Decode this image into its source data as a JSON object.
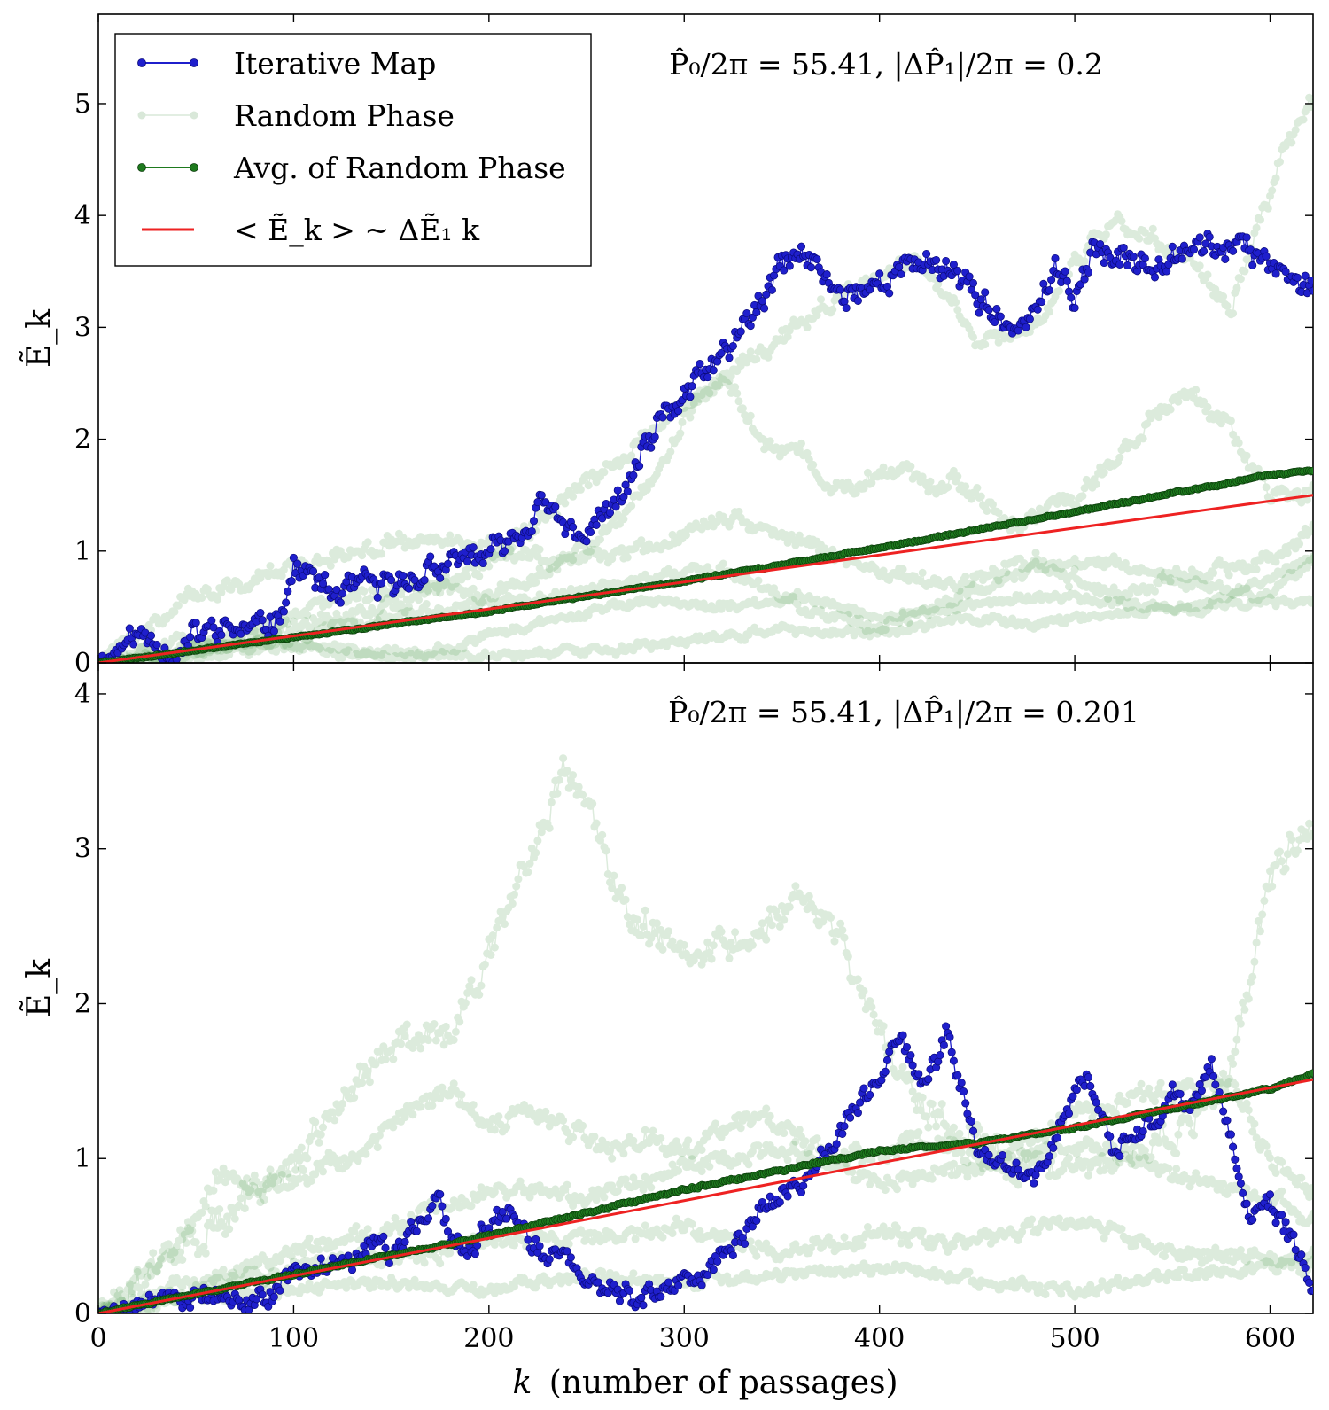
{
  "figure": {
    "xlabel": "k (number of passages)",
    "xlabel_var": "k",
    "xlabel_rest": "(number of passages)"
  },
  "legend": {
    "location": "top-left",
    "entries": [
      {
        "label": "Iterative Map",
        "color": "#1f1fcc",
        "style": "line-dot"
      },
      {
        "label": "Random Phase",
        "color": "#9fc89f",
        "style": "faint-line-dot"
      },
      {
        "label": "Avg. of Random Phase",
        "color": "#1e7a1e",
        "style": "line-dot"
      },
      {
        "label": "< Ẽ_k > ~ ΔẼ₁ k",
        "color": "#ee2222",
        "style": "line"
      }
    ]
  },
  "colors": {
    "iterative": "#1f1fcc",
    "iterative_edge": "#0a0a7a",
    "random": "#2e8b2e",
    "average": "#1e7a1e",
    "average_edge": "#0b3d0b",
    "fit": "#ee2222"
  },
  "chart_data": [
    {
      "type": "line",
      "panel": "top",
      "annotation": "P̂₀/2π = 55.41, |ΔP̂₁|/2π = 0.2",
      "xlabel": "",
      "ylabel": "Ẽ_k",
      "xlim": [
        0,
        622
      ],
      "ylim": [
        0,
        5.8
      ],
      "xticks": [
        0,
        100,
        200,
        300,
        400,
        500,
        600
      ],
      "yticks": [
        0,
        1,
        2,
        3,
        4,
        5
      ],
      "fit_slope": 0.00241,
      "series": [
        {
          "name": "Iterative Map",
          "role": "iterative",
          "x": [
            0,
            20,
            30,
            40,
            50,
            60,
            80,
            90,
            95,
            100,
            110,
            120,
            130,
            140,
            150,
            160,
            170,
            180,
            190,
            200,
            210,
            220,
            225,
            230,
            240,
            250,
            255,
            260,
            270,
            280,
            290,
            295,
            300,
            310,
            320,
            330,
            340,
            345,
            350,
            360,
            370,
            380,
            400,
            420,
            440,
            450,
            460,
            470,
            480,
            490,
            500,
            510,
            520,
            540,
            560,
            580,
            600,
            622
          ],
          "y": [
            0,
            0.25,
            0.2,
            0.05,
            0.25,
            0.3,
            0.3,
            0.4,
            0.55,
            0.85,
            0.75,
            0.6,
            0.65,
            0.7,
            0.65,
            0.75,
            0.85,
            0.85,
            0.95,
            0.95,
            1.1,
            1.2,
            1.4,
            1.35,
            1.2,
            1.15,
            1.3,
            1.3,
            1.55,
            1.9,
            2.2,
            2.3,
            2.4,
            2.55,
            2.75,
            3.0,
            3.2,
            3.4,
            3.55,
            3.65,
            3.5,
            3.3,
            3.4,
            3.6,
            3.5,
            3.3,
            3.1,
            2.9,
            3.2,
            3.45,
            3.3,
            3.7,
            3.6,
            3.6,
            3.75,
            3.7,
            3.6,
            3.35
          ],
          "jitter": 0.09
        },
        {
          "name": "Random Phase",
          "role": "random",
          "x": [
            0,
            40,
            80,
            120,
            160,
            200,
            240,
            280,
            300,
            320,
            340,
            360,
            380,
            400,
            440,
            470,
            500,
            520,
            540,
            560,
            580,
            600,
            622
          ],
          "y": [
            0,
            0.55,
            0.75,
            0.95,
            1.1,
            1.0,
            0.9,
            1.5,
            2.2,
            2.6,
            2.0,
            1.9,
            1.5,
            1.7,
            1.6,
            1.2,
            1.5,
            1.8,
            2.2,
            2.4,
            2.1,
            1.5,
            1.5
          ],
          "jitter": 0.06
        },
        {
          "name": "Random Phase",
          "role": "random",
          "x": [
            0,
            40,
            80,
            120,
            160,
            200,
            240,
            280,
            320,
            360,
            400,
            440,
            480,
            520,
            560,
            600,
            622
          ],
          "y": [
            0,
            0.1,
            0.3,
            0.55,
            0.7,
            0.6,
            0.9,
            1.0,
            1.3,
            1.1,
            0.8,
            0.7,
            0.9,
            0.6,
            0.8,
            0.9,
            1.2
          ],
          "jitter": 0.05
        },
        {
          "name": "Random Phase",
          "role": "random",
          "x": [
            0,
            40,
            80,
            120,
            160,
            200,
            240,
            280,
            320,
            360,
            400,
            440,
            480,
            520,
            560,
            600,
            622
          ],
          "y": [
            0,
            0.2,
            0.15,
            0.3,
            0.45,
            0.55,
            0.6,
            0.75,
            0.85,
            0.5,
            0.3,
            0.6,
            0.85,
            0.9,
            0.7,
            0.6,
            0.9
          ],
          "jitter": 0.04
        },
        {
          "name": "Random Phase",
          "role": "random",
          "x": [
            0,
            40,
            80,
            120,
            160,
            200,
            240,
            280,
            320,
            360,
            400,
            440,
            480,
            520,
            560,
            600,
            622
          ],
          "y": [
            0,
            0.05,
            0.2,
            0.1,
            0.05,
            0.25,
            0.4,
            0.55,
            0.5,
            0.6,
            0.4,
            0.5,
            0.6,
            0.55,
            0.45,
            0.75,
            0.95
          ],
          "jitter": 0.03
        },
        {
          "name": "Random Phase",
          "role": "random",
          "x": [
            0,
            50,
            100,
            150,
            200,
            250,
            280,
            320,
            360,
            400,
            440,
            480,
            520,
            560,
            600,
            622
          ],
          "y": [
            0,
            0.05,
            0.15,
            0.1,
            0.05,
            0.1,
            0.15,
            0.25,
            0.3,
            0.25,
            0.4,
            0.35,
            0.45,
            0.5,
            0.55,
            0.55
          ],
          "jitter": 0.03
        },
        {
          "name": "Random Phase",
          "role": "random",
          "x": [
            0,
            50,
            100,
            150,
            200,
            250,
            300,
            340,
            380,
            420,
            450,
            480,
            500,
            520,
            540,
            560,
            580,
            600,
            610,
            622
          ],
          "y": [
            0,
            0.1,
            0.3,
            0.5,
            0.9,
            1.6,
            2.3,
            2.8,
            3.3,
            3.6,
            2.9,
            3.0,
            3.6,
            4.0,
            3.8,
            3.6,
            3.2,
            4.2,
            4.7,
            5.0
          ],
          "jitter": 0.06
        },
        {
          "name": "Avg. of Random Phase",
          "role": "average",
          "x": [
            0,
            100,
            200,
            300,
            400,
            500,
            600,
            622
          ],
          "y": [
            0,
            0.23,
            0.46,
            0.73,
            1.03,
            1.35,
            1.68,
            1.72
          ],
          "jitter": 0.006
        },
        {
          "name": "< Ẽ_k > ~ ΔẼ₁ k",
          "role": "fit",
          "x": [
            0,
            622
          ],
          "y": [
            0,
            1.5
          ]
        }
      ]
    },
    {
      "type": "line",
      "panel": "bottom",
      "annotation": "P̂₀/2π = 55.41, |ΔP̂₁|/2π = 0.201",
      "xlabel": "k (number of passages)",
      "ylabel": "Ẽ_k",
      "xlim": [
        0,
        622
      ],
      "ylim": [
        0,
        4.2
      ],
      "xticks": [
        0,
        100,
        200,
        300,
        400,
        500,
        600
      ],
      "yticks": [
        0,
        1,
        2,
        3,
        4
      ],
      "fit_slope": 0.00243,
      "series": [
        {
          "name": "Iterative Map",
          "role": "iterative",
          "x": [
            0,
            40,
            60,
            70,
            80,
            90,
            100,
            110,
            130,
            140,
            145,
            150,
            160,
            170,
            175,
            180,
            190,
            200,
            210,
            220,
            230,
            240,
            250,
            260,
            270,
            280,
            290,
            300,
            310,
            320,
            330,
            340,
            350,
            360,
            370,
            380,
            390,
            400,
            405,
            410,
            420,
            430,
            435,
            440,
            450,
            460,
            470,
            480,
            490,
            500,
            505,
            510,
            520,
            530,
            540,
            550,
            560,
            570,
            580,
            585,
            590,
            600,
            610,
            622
          ],
          "y": [
            0,
            0.1,
            0.15,
            0.05,
            0.05,
            0.15,
            0.3,
            0.3,
            0.3,
            0.45,
            0.5,
            0.35,
            0.5,
            0.65,
            0.8,
            0.5,
            0.4,
            0.6,
            0.65,
            0.45,
            0.35,
            0.4,
            0.2,
            0.15,
            0.12,
            0.1,
            0.15,
            0.2,
            0.25,
            0.4,
            0.5,
            0.7,
            0.75,
            0.8,
            1.0,
            1.2,
            1.4,
            1.5,
            1.75,
            1.8,
            1.5,
            1.65,
            1.85,
            1.5,
            1.1,
            1.0,
            0.9,
            0.85,
            1.1,
            1.45,
            1.55,
            1.4,
            1.05,
            1.15,
            1.25,
            1.4,
            1.35,
            1.6,
            1.15,
            0.8,
            0.6,
            0.7,
            0.5,
            0.2
          ],
          "jitter": 0.05
        },
        {
          "name": "Random Phase",
          "role": "random",
          "x": [
            0,
            50,
            100,
            130,
            150,
            180,
            200,
            220,
            240,
            250,
            270,
            290,
            320,
            340,
            360,
            380,
            400,
            420,
            440,
            480,
            520,
            560,
            580,
            600,
            622
          ],
          "y": [
            0,
            0.5,
            0.95,
            1.5,
            1.75,
            1.8,
            2.3,
            2.9,
            3.55,
            3.3,
            2.6,
            2.4,
            2.35,
            2.5,
            2.7,
            2.4,
            1.8,
            1.4,
            1.2,
            0.9,
            1.0,
            1.2,
            1.6,
            2.8,
            3.2
          ],
          "jitter": 0.08
        },
        {
          "name": "Random Phase",
          "role": "random",
          "x": [
            0,
            40,
            60,
            80,
            100,
            130,
            160,
            180,
            200,
            220,
            240,
            260,
            280,
            300,
            320,
            340,
            380,
            420,
            460,
            500,
            540,
            580,
            600,
            622
          ],
          "y": [
            0,
            0.4,
            0.9,
            0.8,
            0.85,
            1.0,
            1.3,
            1.45,
            1.2,
            1.3,
            1.2,
            1.05,
            1.15,
            1.05,
            1.2,
            1.25,
            1.0,
            1.1,
            1.0,
            1.3,
            1.4,
            1.5,
            1.0,
            0.8
          ],
          "jitter": 0.05
        },
        {
          "name": "Random Phase",
          "role": "random",
          "x": [
            0,
            50,
            100,
            150,
            200,
            250,
            300,
            350,
            400,
            450,
            500,
            550,
            600,
            622
          ],
          "y": [
            0,
            0.2,
            0.4,
            0.55,
            0.8,
            0.75,
            0.95,
            1.05,
            0.85,
            0.95,
            1.1,
            0.9,
            0.75,
            0.6
          ],
          "jitter": 0.04
        },
        {
          "name": "Random Phase",
          "role": "random",
          "x": [
            0,
            50,
            100,
            150,
            200,
            250,
            300,
            350,
            400,
            450,
            500,
            550,
            600,
            622
          ],
          "y": [
            0,
            0.15,
            0.3,
            0.35,
            0.45,
            0.5,
            0.55,
            0.4,
            0.5,
            0.45,
            0.6,
            0.4,
            0.35,
            0.3
          ],
          "jitter": 0.04
        },
        {
          "name": "Random Phase",
          "role": "random",
          "x": [
            0,
            50,
            100,
            150,
            200,
            250,
            300,
            350,
            400,
            450,
            500,
            550,
            600,
            622
          ],
          "y": [
            0,
            0.1,
            0.15,
            0.2,
            0.15,
            0.25,
            0.2,
            0.25,
            0.3,
            0.2,
            0.15,
            0.25,
            0.3,
            0.4
          ],
          "jitter": 0.03
        },
        {
          "name": "Avg. of Random Phase",
          "role": "average",
          "x": [
            0,
            100,
            200,
            300,
            400,
            450,
            500,
            600,
            622
          ],
          "y": [
            0,
            0.25,
            0.5,
            0.8,
            1.05,
            1.1,
            1.2,
            1.45,
            1.55
          ],
          "jitter": 0.006
        },
        {
          "name": "< Ẽ_k > ~ ΔẼ₁ k",
          "role": "fit",
          "x": [
            0,
            622
          ],
          "y": [
            0,
            1.51
          ]
        }
      ]
    }
  ]
}
